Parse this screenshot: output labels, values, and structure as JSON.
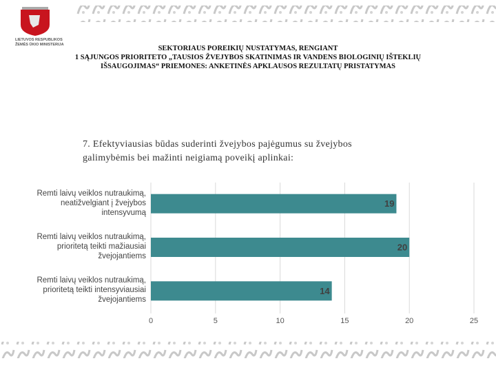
{
  "logo": {
    "lines": [
      "LIETUVOS RESPUBLIKOS",
      "ŽEMĖS ŪKIO MINISTERIJA"
    ]
  },
  "header": {
    "title_lines": [
      "SEKTORIAUS POREIKIŲ NUSTATYMAS, RENGIANT",
      "1 SĄJUNGOS PRIORITETO „TAUSIOS ŽVEJYBOS SKATINIMAS IR VANDENS BIOLOGINIŲ IŠTEKLIŲ",
      "IŠSAUGOJIMAS“ PRIEMONES: ANKETINĖS APKLAUSOS REZULTATŲ PRISTATYMAS"
    ]
  },
  "chart_data": {
    "type": "hbar",
    "title": "7. Efektyviausias būdas suderinti žvejybos pajėgumus su žvejybos galimybėmis bei mažinti neigiamą poveikį aplinkai:",
    "categories": [
      "Remti laivų veiklos nutraukimą, neatižvelgiant į žvejybos intensyvumą",
      "Remti laivų veiklos nutraukimą, prioritetą teikti mažiausiai žvejojantiems",
      "Remti laivų veiklos nutraukimą, prioritetą teikti intensyviausiai žvejojantiems"
    ],
    "values": [
      19,
      20,
      14
    ],
    "color": "#3d8a8f",
    "xlim": [
      0,
      25
    ],
    "xticks": [
      0,
      5,
      10,
      15,
      20,
      25
    ],
    "grid": true
  }
}
